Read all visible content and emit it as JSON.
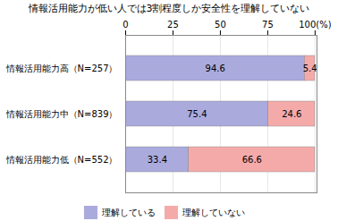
{
  "chart_data": {
    "type": "bar",
    "orientation": "horizontal",
    "stacked": true,
    "title": "情報活用能力が低い人では3割程度しか安全性を理解していない",
    "categories": [
      "情報活用能力高（N=257）",
      "情報活用能力中（N=839）",
      "情報活用能力低（N=552）"
    ],
    "series": [
      {
        "name": "理解している",
        "color": "#aaaadd",
        "values": [
          94.6,
          75.4,
          33.4
        ]
      },
      {
        "name": "理解していない",
        "color": "#f5aaaa",
        "values": [
          5.4,
          24.6,
          66.6
        ]
      }
    ],
    "xlim": [
      0,
      101
    ],
    "xticks": [
      0,
      25,
      50,
      75,
      {
        "value": 100,
        "label": "100(%)"
      }
    ],
    "grid": true,
    "legend": "bottom",
    "data_labels": true
  }
}
